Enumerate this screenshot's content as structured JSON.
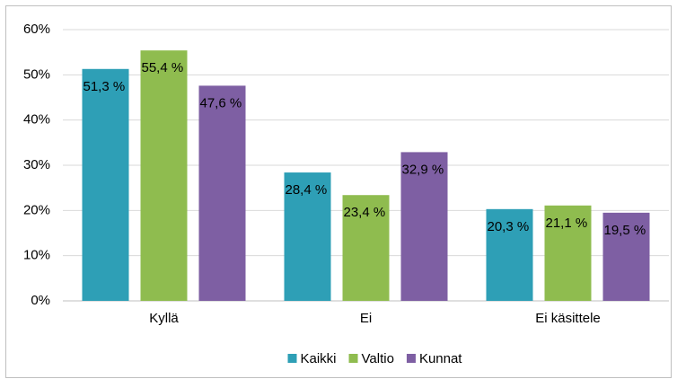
{
  "chart_data": {
    "type": "bar",
    "categories": [
      "Kyllä",
      "Ei",
      "Ei käsittele"
    ],
    "series": [
      {
        "name": "Kaikki",
        "color": "#2e9fb6",
        "values": [
          51.3,
          28.4,
          20.3
        ],
        "value_labels": [
          "51,3 %",
          "28,4 %",
          "20,3 %"
        ]
      },
      {
        "name": "Valtio",
        "color": "#8fbc4f",
        "values": [
          55.4,
          23.4,
          21.1
        ],
        "value_labels": [
          "55,4 %",
          "23,4 %",
          "21,1 %"
        ]
      },
      {
        "name": "Kunnat",
        "color": "#7e5fa3",
        "values": [
          47.6,
          32.9,
          19.5
        ],
        "value_labels": [
          "47,6 %",
          "32,9 %",
          "19,5 %"
        ]
      }
    ],
    "ylim": [
      0,
      60
    ],
    "yticks": [
      {
        "value": 0,
        "label": "0%"
      },
      {
        "value": 10,
        "label": "10%"
      },
      {
        "value": 20,
        "label": "20%"
      },
      {
        "value": 30,
        "label": "30%"
      },
      {
        "value": 40,
        "label": "40%"
      },
      {
        "value": 50,
        "label": "50%"
      },
      {
        "value": 60,
        "label": "60%"
      }
    ],
    "grid": true,
    "legend": "bottom"
  }
}
